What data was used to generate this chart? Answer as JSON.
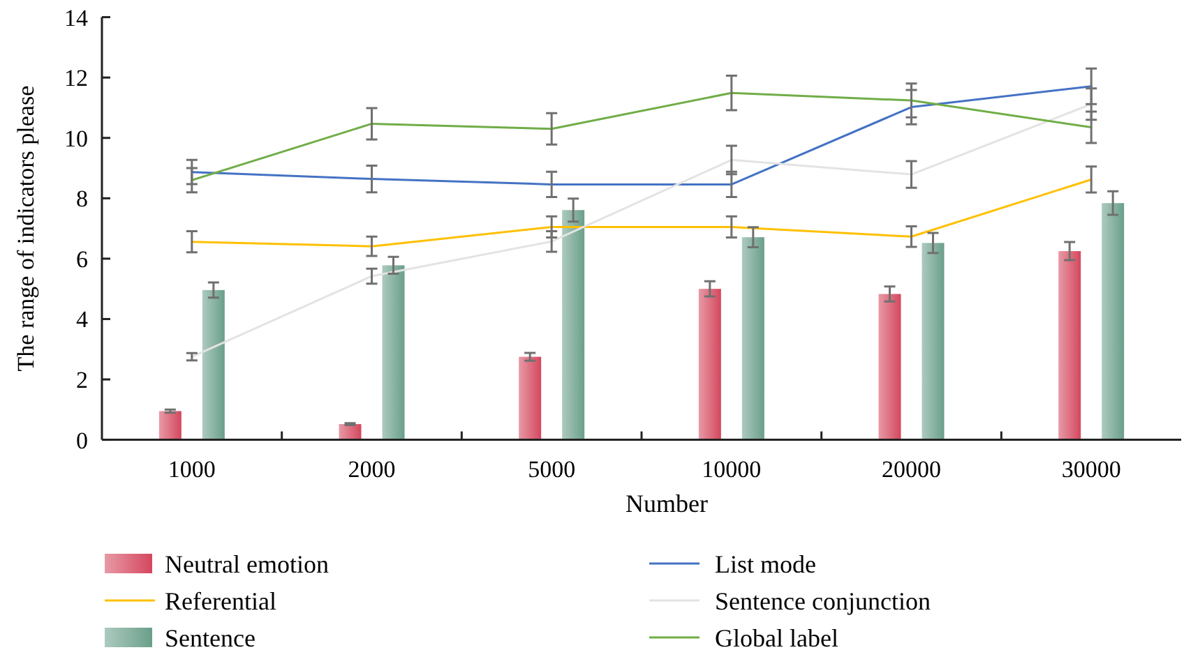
{
  "chart_data": {
    "type": "bar",
    "xlabel": "Number",
    "ylabel": "The range of indicators please",
    "categories": [
      "1000",
      "2000",
      "5000",
      "10000",
      "20000",
      "30000"
    ],
    "ylim": [
      0,
      14
    ],
    "yticks": [
      0,
      2,
      4,
      6,
      8,
      10,
      12,
      14
    ],
    "legend": "bottom",
    "series": [
      {
        "name": "Neutral emotion",
        "color": "#d4475e",
        "values": [
          0.95,
          0.52,
          2.75,
          5.0,
          4.83,
          6.25
        ],
        "errors": [
          0.05,
          0.03,
          0.13,
          0.25,
          0.25,
          0.3
        ]
      },
      {
        "name": "Referential",
        "type": "line",
        "color": "#ffc000",
        "values": [
          6.56,
          6.41,
          7.05,
          7.05,
          6.73,
          8.62
        ],
        "errors": [
          0.35,
          0.32,
          0.35,
          0.35,
          0.34,
          0.43
        ]
      },
      {
        "name": "Sentence",
        "color": "#6a9f8a",
        "values": [
          4.96,
          5.78,
          7.61,
          6.71,
          6.52,
          7.84
        ],
        "errors": [
          0.25,
          0.28,
          0.38,
          0.33,
          0.33,
          0.39
        ]
      },
      {
        "name": "List mode",
        "type": "line",
        "color": "#4472c4",
        "values": [
          8.87,
          8.64,
          8.46,
          8.46,
          11.02,
          11.71
        ],
        "errors": [
          0.4,
          0.44,
          0.42,
          0.42,
          0.57,
          0.59
        ]
      },
      {
        "name": "Sentence conjunction",
        "type": "line",
        "color": "#e3e3e3",
        "values": [
          2.75,
          5.42,
          6.57,
          9.27,
          8.79,
          11.12
        ],
        "errors": [
          0.12,
          0.25,
          0.34,
          0.47,
          0.44,
          0.52
        ]
      },
      {
        "name": "Global label",
        "type": "line",
        "color": "#70ad47",
        "values": [
          8.6,
          10.47,
          10.3,
          11.49,
          11.24,
          10.35
        ],
        "errors": [
          0.4,
          0.52,
          0.52,
          0.57,
          0.56,
          0.52
        ]
      }
    ]
  }
}
